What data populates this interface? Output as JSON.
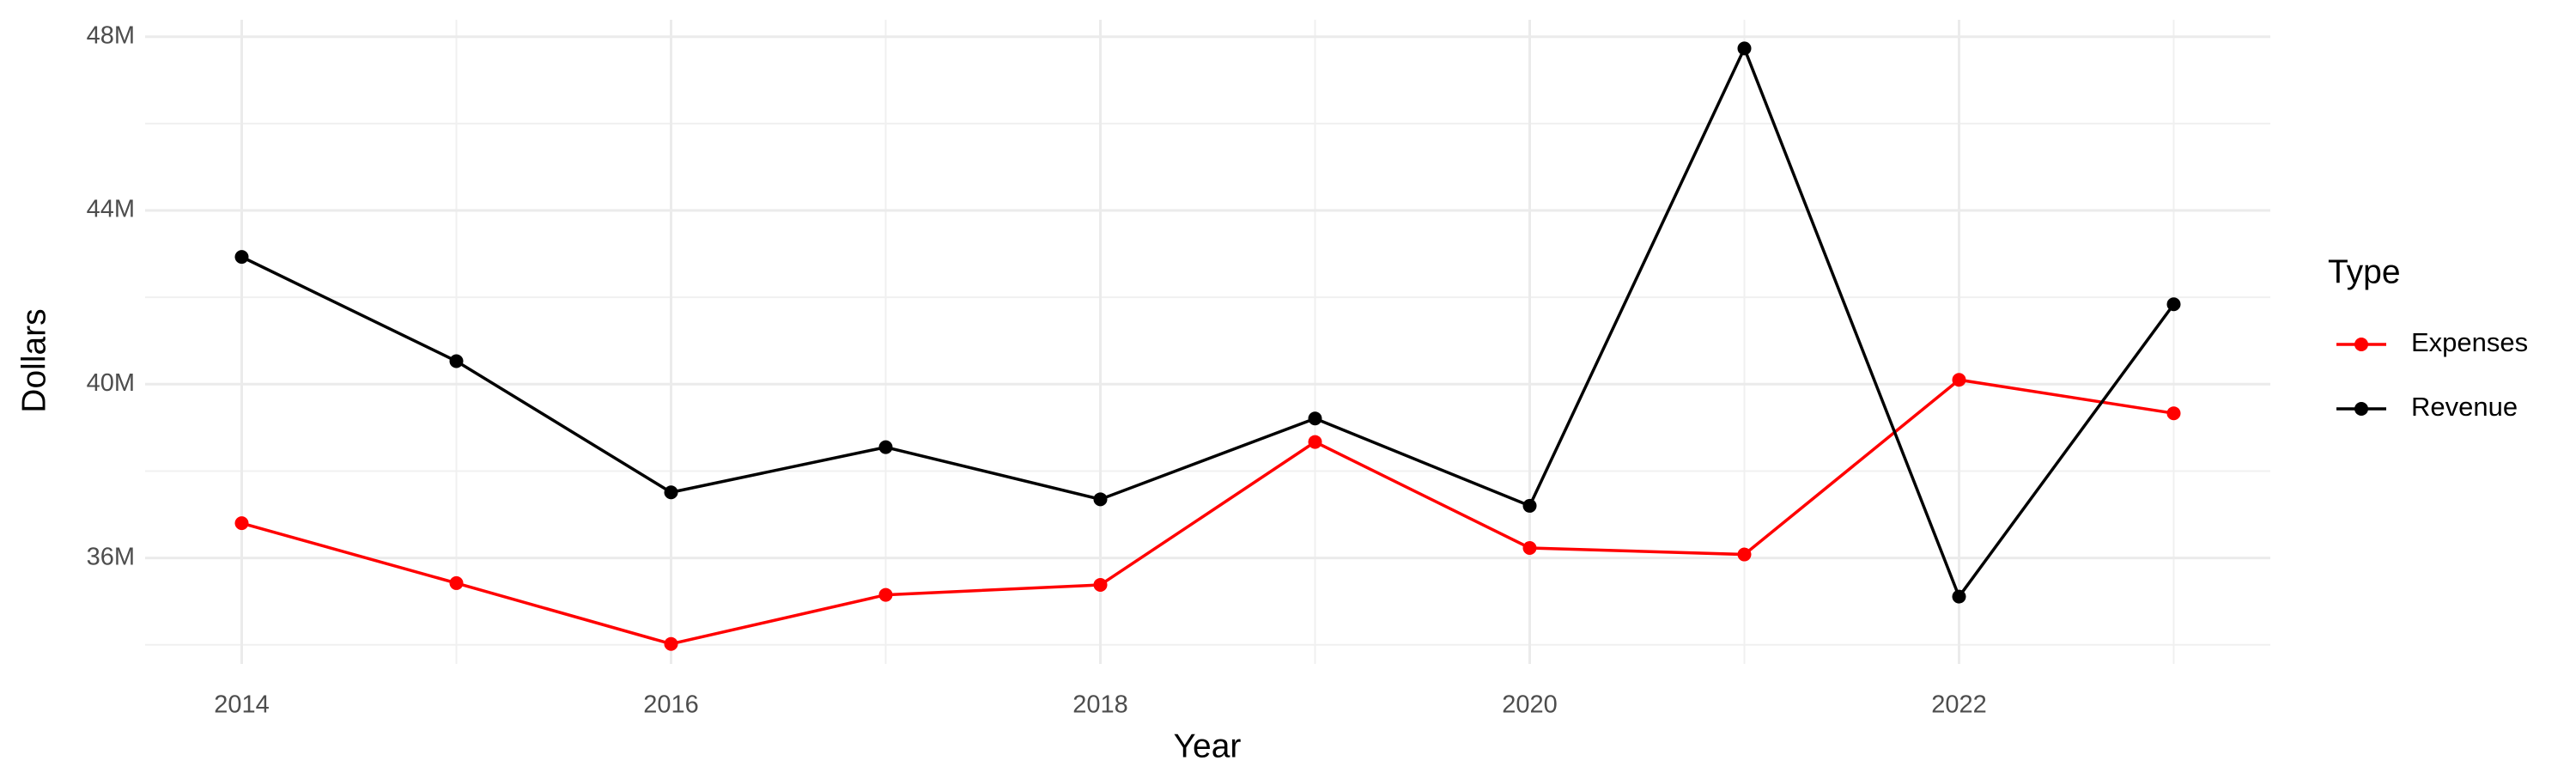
{
  "chart_data": {
    "type": "line",
    "x_label": "Year",
    "y_label": "Dollars",
    "legend_title": "Type",
    "x": [
      2014,
      2015,
      2016,
      2017,
      2018,
      2019,
      2020,
      2021,
      2022,
      2023
    ],
    "series": [
      {
        "name": "Expenses",
        "color": "#ff0000",
        "values": [
          36800000,
          35420000,
          34020000,
          35150000,
          35380000,
          38670000,
          36230000,
          36080000,
          40100000,
          39330000
        ]
      },
      {
        "name": "Revenue",
        "color": "#000000",
        "values": [
          42930000,
          40530000,
          37510000,
          38550000,
          37350000,
          39210000,
          37200000,
          47730000,
          35110000,
          41840000
        ]
      }
    ],
    "xlim": [
      2013.55,
      2023.45
    ],
    "xticks": [
      2014,
      2016,
      2018,
      2020,
      2022
    ],
    "ylim": [
      33560000,
      48390000
    ],
    "yticks": [
      {
        "value": 36000000,
        "label": "36M"
      },
      {
        "value": 40000000,
        "label": "40M"
      },
      {
        "value": 44000000,
        "label": "44M"
      },
      {
        "value": 48000000,
        "label": "48M"
      }
    ],
    "grid": true,
    "legend": "right"
  }
}
